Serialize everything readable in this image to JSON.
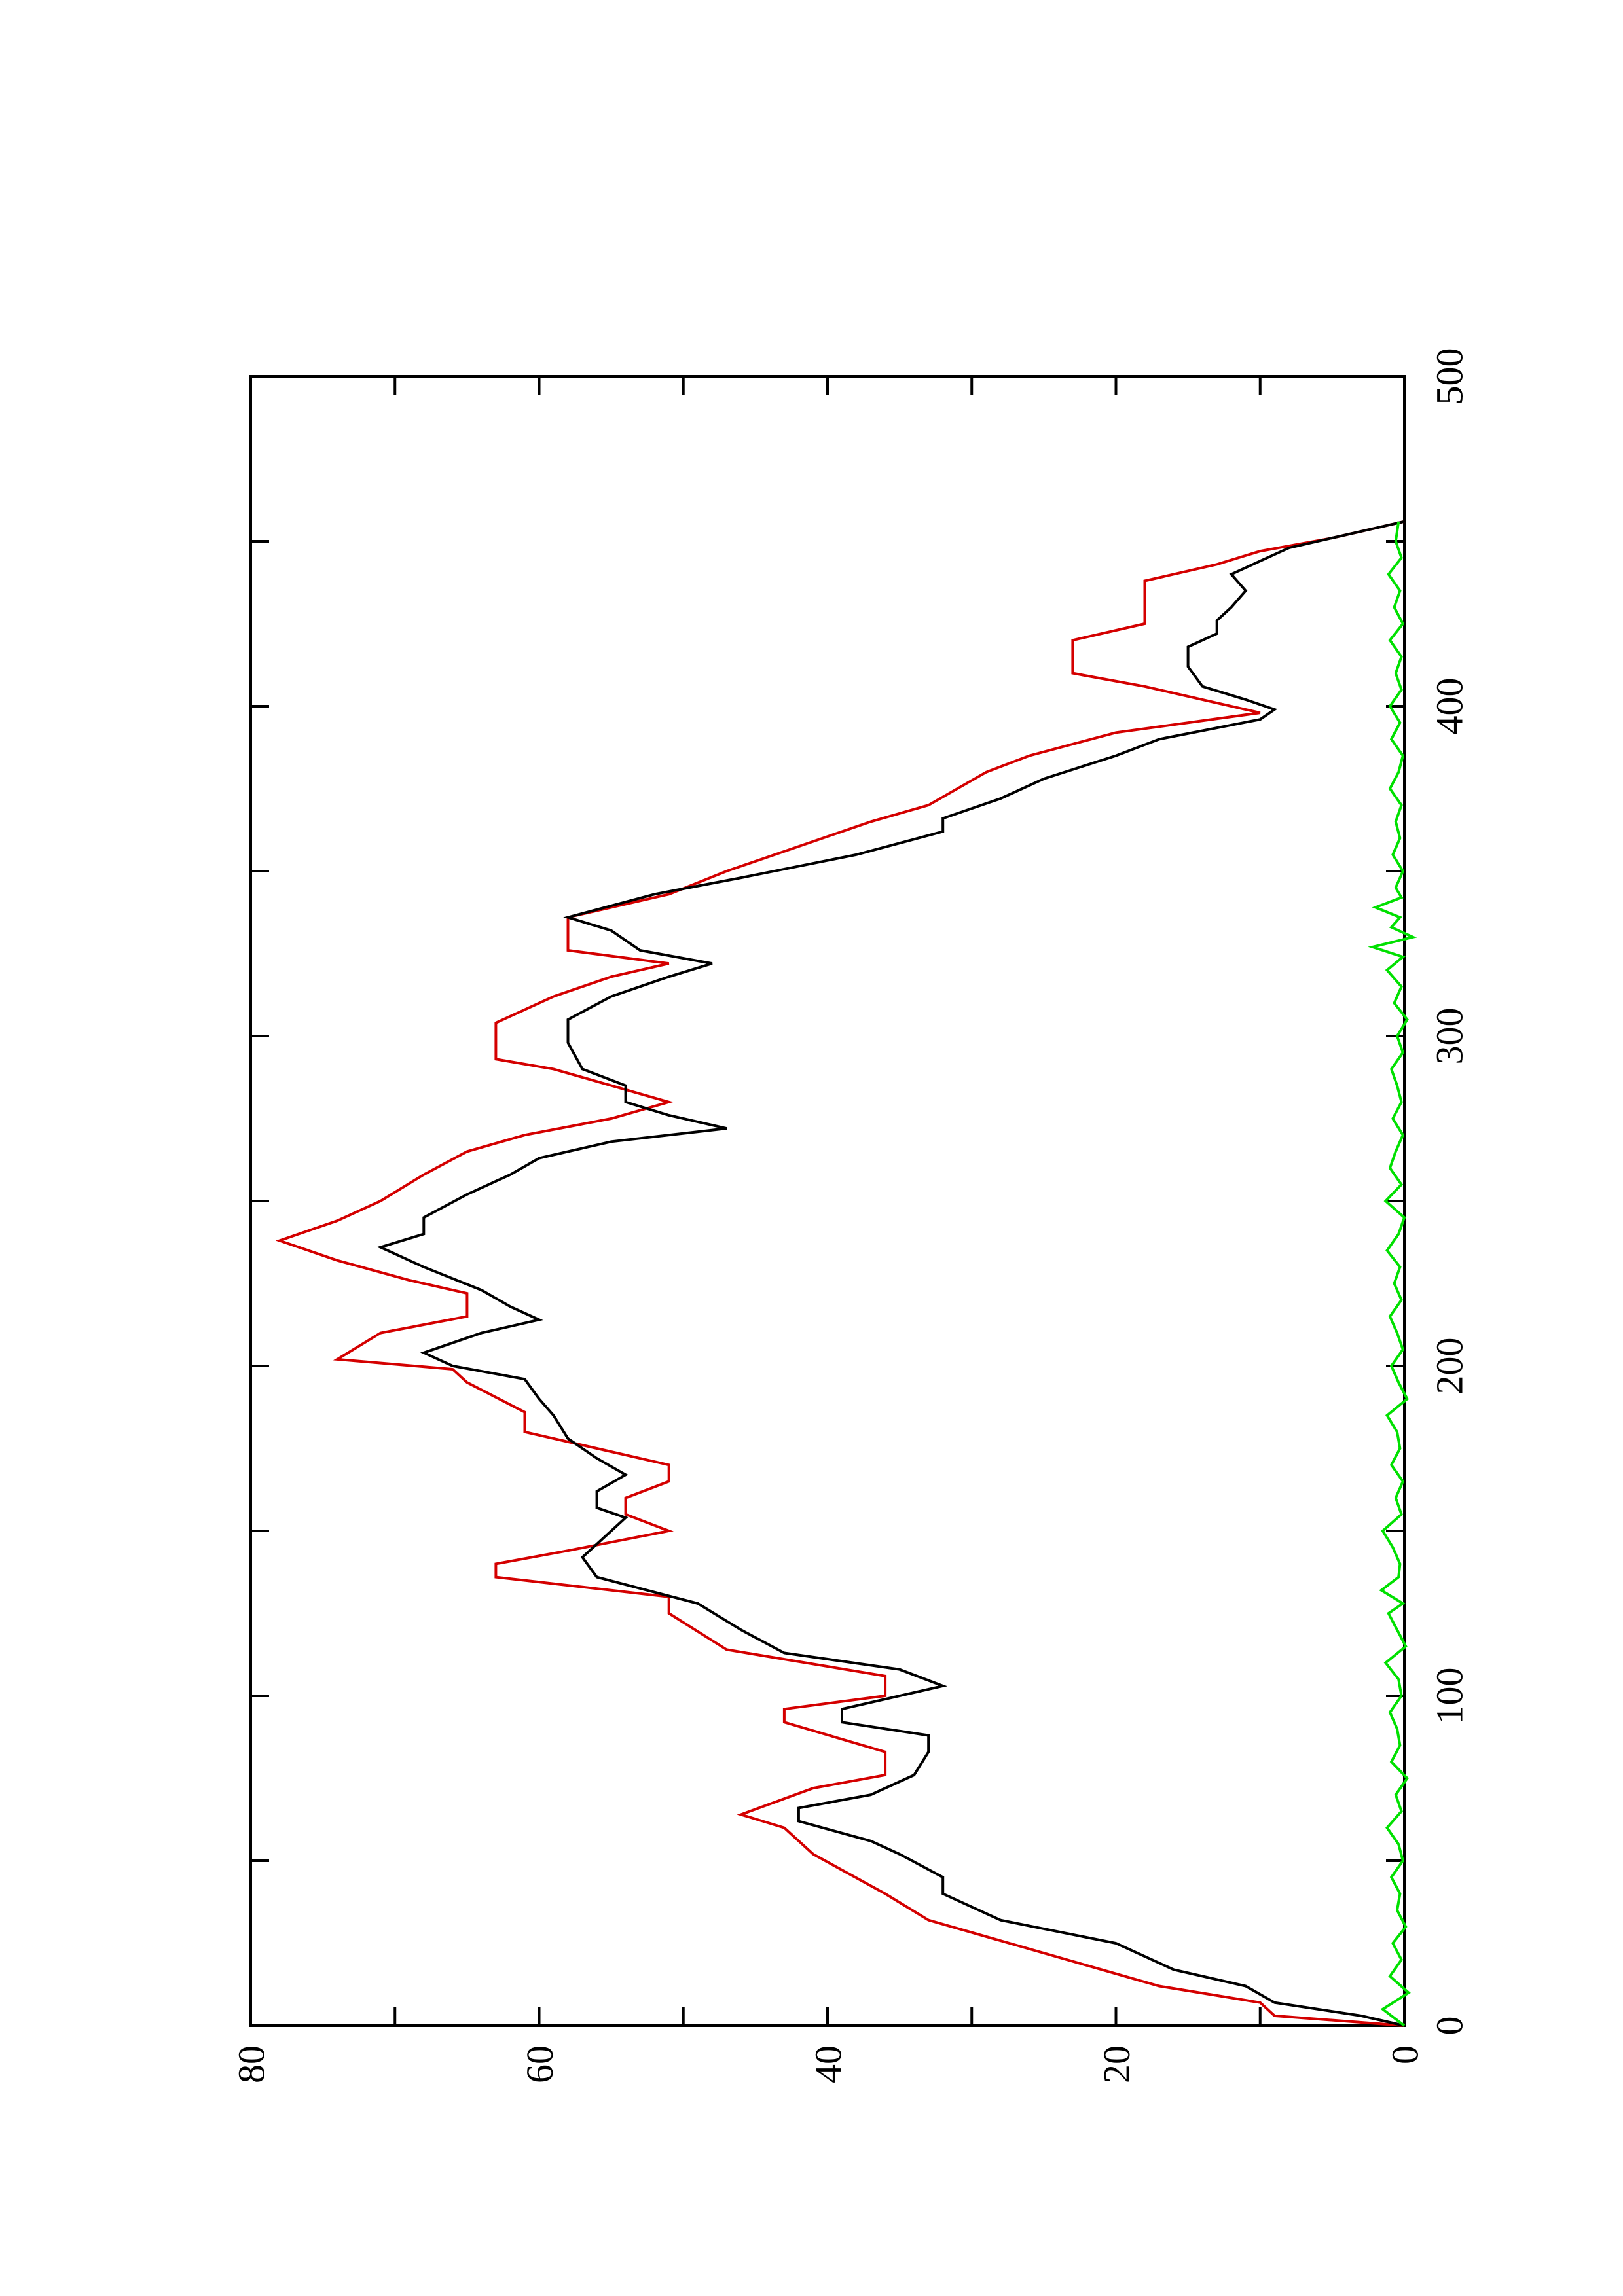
{
  "chart_data": {
    "type": "line",
    "title": "",
    "xlabel": "",
    "ylabel": "",
    "orientation": "rotated-90-counterclockwise",
    "xlim": [
      0,
      500
    ],
    "ylim": [
      0,
      80
    ],
    "x_ticks": [
      "0",
      "100",
      "200",
      "300",
      "400",
      "500"
    ],
    "y_ticks": [
      "0",
      "20",
      "40",
      "60",
      "80"
    ],
    "grid": false,
    "legend": "none",
    "series": [
      {
        "color": "#d40000",
        "style": "step",
        "points": [
          [
            0,
            0
          ],
          [
            3,
            9
          ],
          [
            7,
            10
          ],
          [
            12,
            17
          ],
          [
            17,
            21
          ],
          [
            32,
            33
          ],
          [
            40,
            36
          ],
          [
            52,
            41
          ],
          [
            60,
            43
          ],
          [
            64,
            46
          ],
          [
            72,
            41
          ],
          [
            76,
            36
          ],
          [
            83,
            36
          ],
          [
            92,
            43
          ],
          [
            96,
            43
          ],
          [
            100,
            36
          ],
          [
            106,
            36
          ],
          [
            114,
            47
          ],
          [
            125,
            51
          ],
          [
            130,
            51
          ],
          [
            136,
            63
          ],
          [
            140,
            63
          ],
          [
            144,
            58
          ],
          [
            150,
            51
          ],
          [
            155,
            54
          ],
          [
            160,
            54
          ],
          [
            165,
            51
          ],
          [
            170,
            51
          ],
          [
            175,
            56
          ],
          [
            180,
            61
          ],
          [
            186,
            61
          ],
          [
            195,
            65
          ],
          [
            199,
            66
          ],
          [
            202,
            74
          ],
          [
            210,
            71
          ],
          [
            215,
            65
          ],
          [
            222,
            65
          ],
          [
            226,
            69
          ],
          [
            232,
            74
          ],
          [
            238,
            78
          ],
          [
            244,
            74
          ],
          [
            250,
            71
          ],
          [
            258,
            68
          ],
          [
            265,
            65
          ],
          [
            270,
            61
          ],
          [
            275,
            55
          ],
          [
            280,
            51
          ],
          [
            285,
            55
          ],
          [
            290,
            59
          ],
          [
            293,
            63
          ],
          [
            304,
            63
          ],
          [
            312,
            59
          ],
          [
            318,
            55
          ],
          [
            322,
            51
          ],
          [
            326,
            58
          ],
          [
            336,
            58
          ],
          [
            343,
            51
          ],
          [
            350,
            47
          ],
          [
            365,
            37
          ],
          [
            370,
            33
          ],
          [
            380,
            29
          ],
          [
            385,
            26
          ],
          [
            392,
            20
          ],
          [
            398,
            10
          ],
          [
            403,
            15
          ],
          [
            406,
            18
          ],
          [
            410,
            23
          ],
          [
            420,
            23
          ],
          [
            425,
            18
          ],
          [
            438,
            18
          ],
          [
            443,
            13
          ],
          [
            447,
            10
          ],
          [
            451,
            5
          ],
          [
            456,
            0
          ]
        ]
      },
      {
        "color": "#000000",
        "style": "line",
        "points": [
          [
            0,
            0
          ],
          [
            3,
            3
          ],
          [
            7,
            9
          ],
          [
            12,
            11
          ],
          [
            17,
            16
          ],
          [
            25,
            20
          ],
          [
            32,
            28
          ],
          [
            36,
            30
          ],
          [
            40,
            32
          ],
          [
            45,
            32
          ],
          [
            52,
            35
          ],
          [
            56,
            37
          ],
          [
            62,
            42
          ],
          [
            66,
            42
          ],
          [
            70,
            37
          ],
          [
            76,
            34
          ],
          [
            83,
            33
          ],
          [
            88,
            33
          ],
          [
            92,
            39
          ],
          [
            96,
            39
          ],
          [
            103,
            32
          ],
          [
            108,
            35
          ],
          [
            113,
            43
          ],
          [
            120,
            46
          ],
          [
            128,
            49
          ],
          [
            136,
            56
          ],
          [
            142,
            57
          ],
          [
            150,
            55
          ],
          [
            154,
            54
          ],
          [
            157,
            56
          ],
          [
            162,
            56
          ],
          [
            167,
            54
          ],
          [
            172,
            56
          ],
          [
            178,
            58
          ],
          [
            185,
            59
          ],
          [
            190,
            60
          ],
          [
            196,
            61
          ],
          [
            200,
            66
          ],
          [
            204,
            68
          ],
          [
            210,
            64
          ],
          [
            214,
            60
          ],
          [
            218,
            62
          ],
          [
            223,
            64
          ],
          [
            230,
            68
          ],
          [
            236,
            71
          ],
          [
            240,
            68
          ],
          [
            245,
            68
          ],
          [
            252,
            65
          ],
          [
            258,
            62
          ],
          [
            263,
            60
          ],
          [
            268,
            55
          ],
          [
            272,
            47
          ],
          [
            276,
            51
          ],
          [
            280,
            54
          ],
          [
            285,
            54
          ],
          [
            290,
            57
          ],
          [
            298,
            58
          ],
          [
            305,
            58
          ],
          [
            312,
            55
          ],
          [
            318,
            51
          ],
          [
            322,
            48
          ],
          [
            326,
            53
          ],
          [
            332,
            55
          ],
          [
            336,
            58
          ],
          [
            343,
            52
          ],
          [
            348,
            46
          ],
          [
            355,
            38
          ],
          [
            362,
            32
          ],
          [
            366,
            32
          ],
          [
            372,
            28
          ],
          [
            378,
            25
          ],
          [
            385,
            20
          ],
          [
            390,
            17
          ],
          [
            396,
            10
          ],
          [
            399,
            9
          ],
          [
            402,
            11
          ],
          [
            406,
            14
          ],
          [
            412,
            15
          ],
          [
            418,
            15
          ],
          [
            422,
            13
          ],
          [
            426,
            13
          ],
          [
            430,
            12
          ],
          [
            435,
            11
          ],
          [
            440,
            12
          ],
          [
            444,
            10
          ],
          [
            448,
            8
          ],
          [
            452,
            4
          ],
          [
            456,
            0
          ]
        ]
      },
      {
        "color": "#00e000",
        "style": "line",
        "points": [
          [
            0,
            0
          ],
          [
            5,
            1.5
          ],
          [
            10,
            -0.3
          ],
          [
            15,
            1.0
          ],
          [
            20,
            0.2
          ],
          [
            25,
            0.8
          ],
          [
            30,
            -0.1
          ],
          [
            35,
            0.5
          ],
          [
            40,
            0.3
          ],
          [
            45,
            0.9
          ],
          [
            50,
            0.1
          ],
          [
            55,
            0.4
          ],
          [
            60,
            1.2
          ],
          [
            65,
            0.2
          ],
          [
            70,
            0.6
          ],
          [
            75,
            -0.2
          ],
          [
            80,
            0.9
          ],
          [
            85,
            0.3
          ],
          [
            90,
            0.5
          ],
          [
            95,
            1.0
          ],
          [
            100,
            0.2
          ],
          [
            105,
            0.4
          ],
          [
            110,
            1.3
          ],
          [
            115,
            -0.1
          ],
          [
            120,
            0.5
          ],
          [
            125,
            1.1
          ],
          [
            128,
            0.1
          ],
          [
            132,
            1.6
          ],
          [
            136,
            0.4
          ],
          [
            140,
            0.3
          ],
          [
            145,
            0.8
          ],
          [
            150,
            1.5
          ],
          [
            155,
            0.2
          ],
          [
            160,
            0.6
          ],
          [
            165,
            0.1
          ],
          [
            170,
            0.9
          ],
          [
            175,
            0.3
          ],
          [
            180,
            0.5
          ],
          [
            185,
            1.2
          ],
          [
            190,
            -0.2
          ],
          [
            195,
            0.4
          ],
          [
            200,
            0.9
          ],
          [
            205,
            0.1
          ],
          [
            210,
            0.5
          ],
          [
            215,
            1.0
          ],
          [
            220,
            0.2
          ],
          [
            225,
            0.7
          ],
          [
            230,
            0.3
          ],
          [
            235,
            1.2
          ],
          [
            240,
            0.4
          ],
          [
            245,
            0.0
          ],
          [
            250,
            1.3
          ],
          [
            255,
            0.2
          ],
          [
            260,
            1.0
          ],
          [
            265,
            0.6
          ],
          [
            270,
            0.1
          ],
          [
            275,
            0.8
          ],
          [
            280,
            0.2
          ],
          [
            285,
            0.5
          ],
          [
            290,
            0.9
          ],
          [
            295,
            0.1
          ],
          [
            300,
            0.5
          ],
          [
            305,
            -0.2
          ],
          [
            310,
            0.7
          ],
          [
            315,
            0.2
          ],
          [
            320,
            1.2
          ],
          [
            324,
            0.1
          ],
          [
            327,
            2.2
          ],
          [
            330,
            -0.6
          ],
          [
            333,
            0.9
          ],
          [
            336,
            0.3
          ],
          [
            339,
            2.0
          ],
          [
            342,
            0.2
          ],
          [
            345,
            0.6
          ],
          [
            350,
            0.1
          ],
          [
            355,
            0.8
          ],
          [
            360,
            0.3
          ],
          [
            365,
            0.6
          ],
          [
            370,
            0.2
          ],
          [
            375,
            1.0
          ],
          [
            380,
            0.4
          ],
          [
            385,
            0.1
          ],
          [
            390,
            0.9
          ],
          [
            395,
            0.3
          ],
          [
            400,
            1.0
          ],
          [
            405,
            0.2
          ],
          [
            410,
            0.6
          ],
          [
            415,
            0.2
          ],
          [
            420,
            1.0
          ],
          [
            425,
            0.1
          ],
          [
            430,
            0.7
          ],
          [
            435,
            0.3
          ],
          [
            440,
            1.1
          ],
          [
            445,
            0.2
          ],
          [
            450,
            0.6
          ],
          [
            456,
            0.4
          ]
        ]
      }
    ]
  }
}
